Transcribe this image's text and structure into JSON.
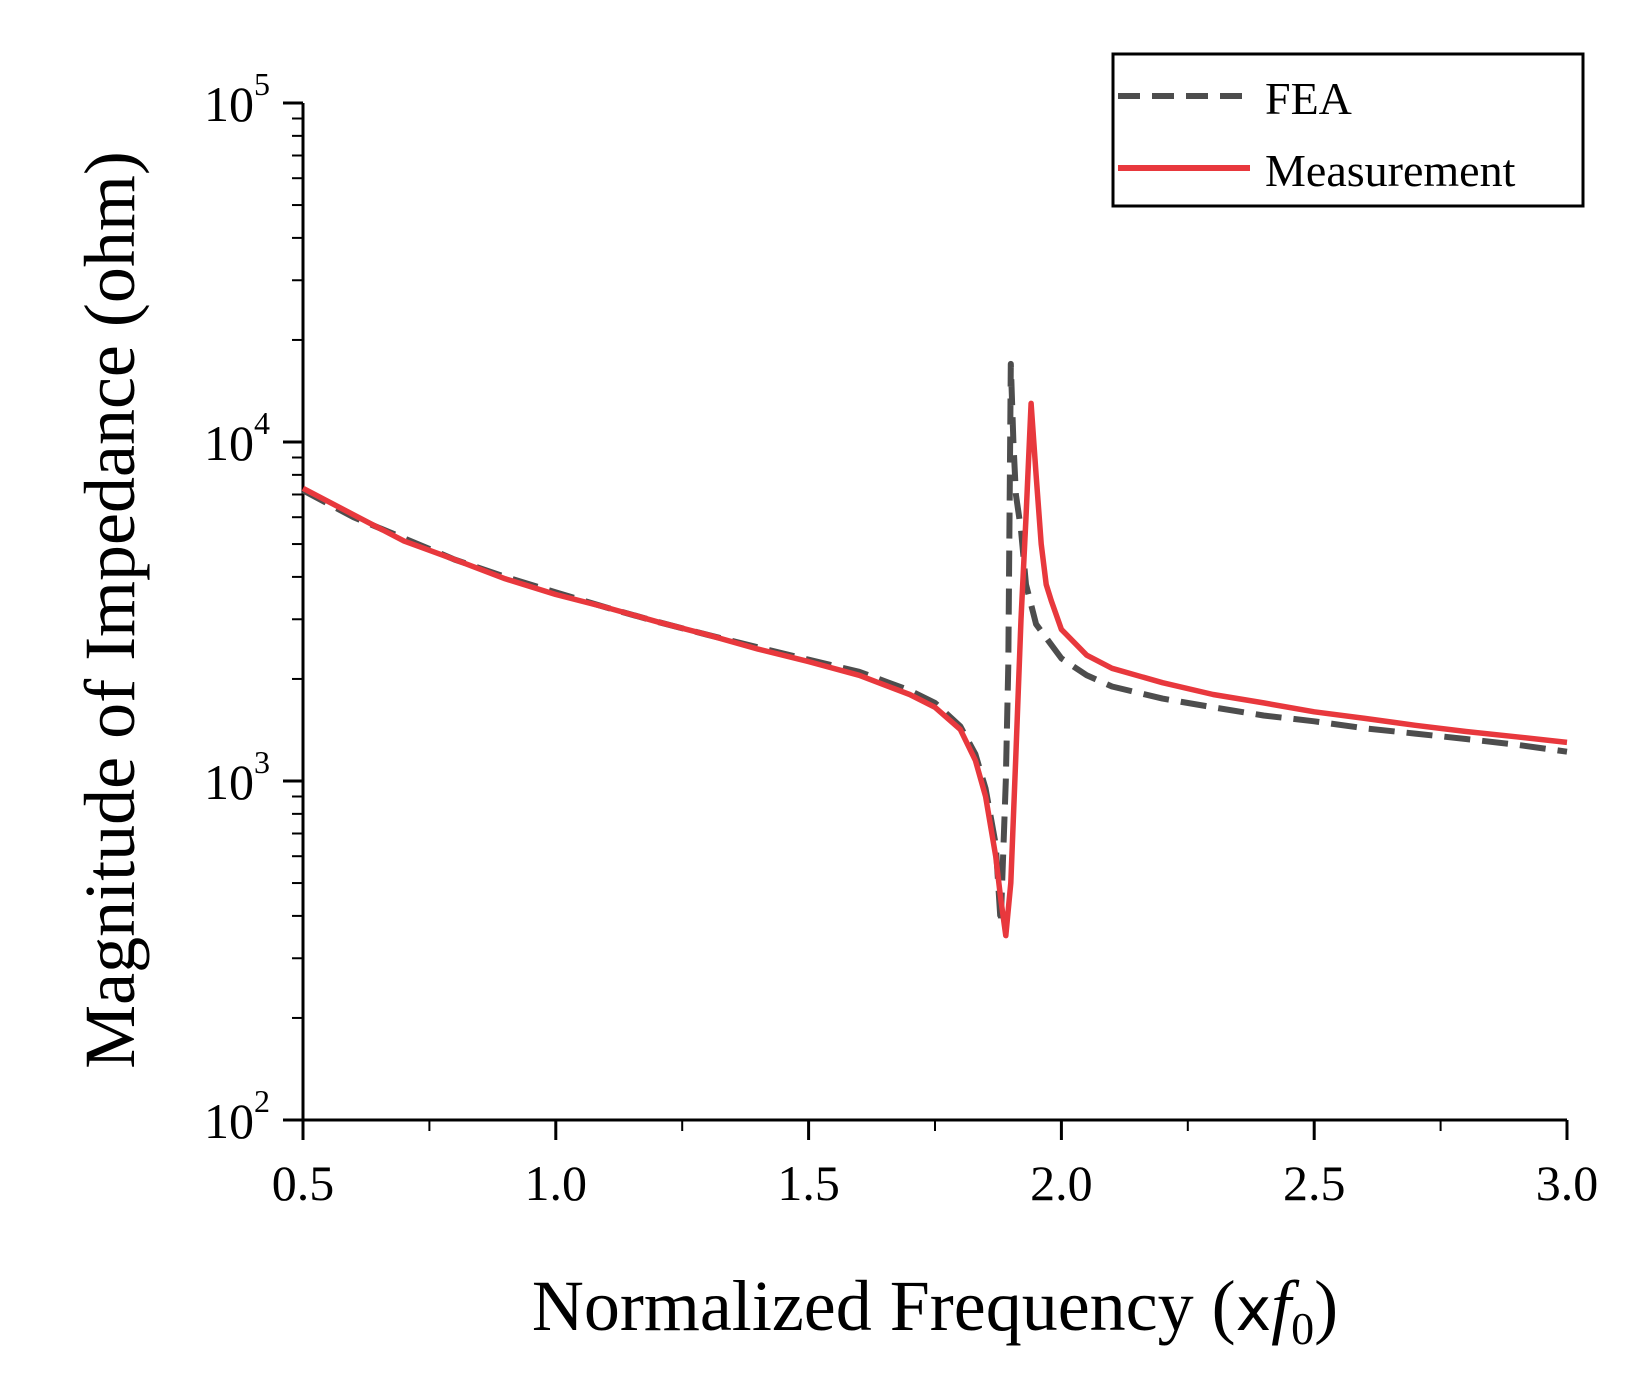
{
  "chart_data": {
    "type": "line",
    "title": "",
    "xlabel": "Normalized Frequency (",
    "xlabel_symbol": "x",
    "xlabel_var": "f",
    "xlabel_sub": "0",
    "xlabel_close": ")",
    "ylabel": "Magnitude of Impedance (ohm)",
    "xlim": [
      0.5,
      3.0
    ],
    "ylim": [
      100,
      100000
    ],
    "yscale": "log",
    "x_ticks": [
      "0.5",
      "1.0",
      "1.5",
      "2.0",
      "2.5",
      "3.0"
    ],
    "x_tick_values": [
      0.5,
      1.0,
      1.5,
      2.0,
      2.5,
      3.0
    ],
    "x_minor_step": 0.25,
    "y_ticks": [
      {
        "base": "10",
        "exp": "2",
        "value": 100
      },
      {
        "base": "10",
        "exp": "3",
        "value": 1000
      },
      {
        "base": "10",
        "exp": "4",
        "value": 10000
      },
      {
        "base": "10",
        "exp": "5",
        "value": 100000
      }
    ],
    "legend_position": "top-right",
    "series": [
      {
        "name": "FEA",
        "color": "#4d4d4d",
        "style": "dashed",
        "x": [
          0.5,
          0.6,
          0.7,
          0.8,
          0.9,
          1.0,
          1.1,
          1.2,
          1.3,
          1.4,
          1.5,
          1.6,
          1.7,
          1.75,
          1.8,
          1.83,
          1.85,
          1.87,
          1.88,
          1.89,
          1.895,
          1.9,
          1.905,
          1.91,
          1.92,
          1.93,
          1.95,
          2.0,
          2.05,
          2.1,
          2.2,
          2.3,
          2.4,
          2.5,
          2.6,
          2.7,
          2.8,
          2.9,
          3.0
        ],
        "values": [
          7200,
          6000,
          5200,
          4500,
          4000,
          3600,
          3250,
          2950,
          2700,
          2480,
          2280,
          2100,
          1850,
          1700,
          1450,
          1200,
          950,
          650,
          380,
          1000,
          2200,
          17000,
          10000,
          7000,
          5500,
          3800,
          2900,
          2300,
          2050,
          1900,
          1750,
          1650,
          1560,
          1500,
          1430,
          1380,
          1330,
          1280,
          1220
        ]
      },
      {
        "name": "Measurement",
        "color": "#e8383d",
        "style": "solid",
        "x": [
          0.5,
          0.6,
          0.7,
          0.8,
          0.9,
          1.0,
          1.1,
          1.2,
          1.3,
          1.4,
          1.5,
          1.6,
          1.7,
          1.75,
          1.8,
          1.83,
          1.85,
          1.87,
          1.88,
          1.89,
          1.9,
          1.91,
          1.92,
          1.93,
          1.94,
          1.95,
          1.96,
          1.97,
          1.98,
          2.0,
          2.05,
          2.1,
          2.2,
          2.3,
          2.4,
          2.5,
          2.6,
          2.7,
          2.8,
          2.9,
          3.0
        ],
        "values": [
          7300,
          6100,
          5100,
          4500,
          3950,
          3550,
          3250,
          2950,
          2700,
          2450,
          2250,
          2050,
          1800,
          1650,
          1420,
          1150,
          900,
          600,
          450,
          350,
          500,
          1200,
          3000,
          6000,
          13000,
          8000,
          5000,
          3800,
          3400,
          2800,
          2350,
          2150,
          1950,
          1800,
          1700,
          1600,
          1530,
          1460,
          1400,
          1350,
          1300
        ]
      }
    ]
  }
}
